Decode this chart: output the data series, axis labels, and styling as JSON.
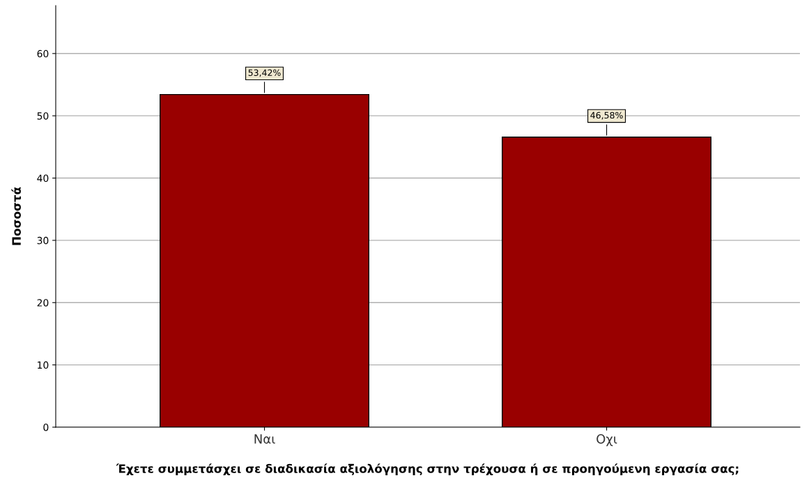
{
  "chart_data": {
    "type": "bar",
    "xlabel": "Έχετε συμμετάσχει σε διαδικασία αξιολόγησης στην τρέχουσα ή σε προηγούμενη εργασία σας;",
    "ylabel": "Ποσοστά",
    "categories": [
      "Ναι",
      "Οχι"
    ],
    "values": [
      53.42,
      46.58
    ],
    "value_labels": [
      "53,42%",
      "46,58%"
    ],
    "color": "#990000",
    "ylim": [
      0,
      67.7
    ],
    "yticks": [
      0,
      10,
      20,
      30,
      40,
      50,
      60
    ],
    "grid": "y"
  }
}
